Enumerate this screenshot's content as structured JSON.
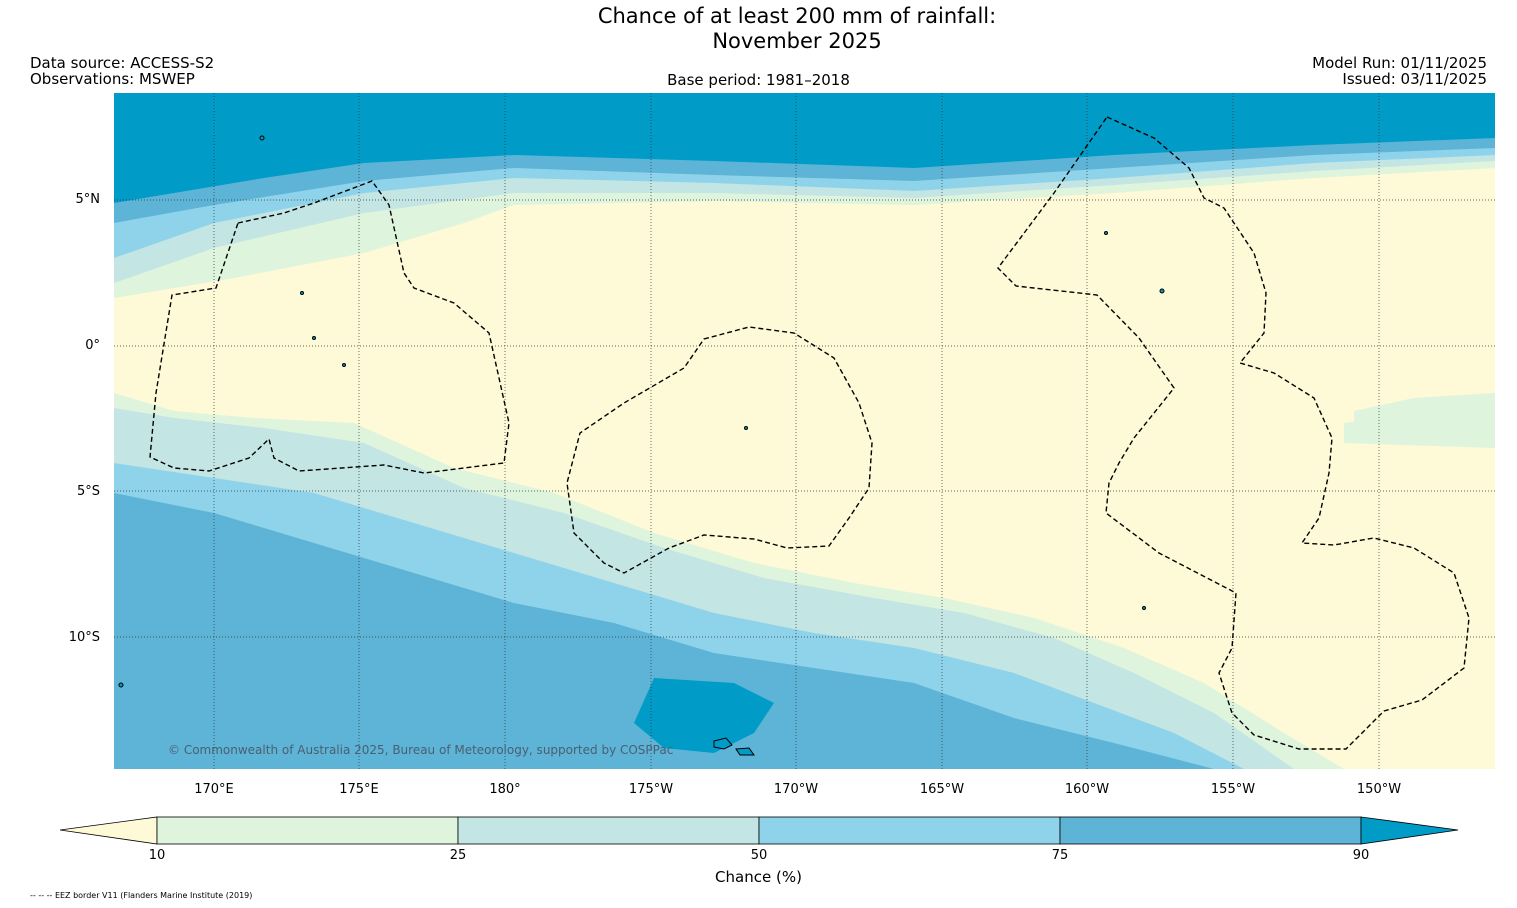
{
  "title": {
    "line1": "Chance of at least 200 mm of rainfall:",
    "line2": "November 2025"
  },
  "header": {
    "data_source": "Data source: ACCESS-S2",
    "observations": "Observations: MSWEP",
    "base_period": "Base period: 1981–2018",
    "model_run": "Model Run: 01/11/2025",
    "issued": "Issued: 03/11/2025"
  },
  "map": {
    "lat_labels": [
      "5°N",
      "0°",
      "5°S",
      "10°S"
    ],
    "lon_labels": [
      "170°E",
      "175°E",
      "180°",
      "175°W",
      "170°W",
      "165°W",
      "160°W",
      "155°W",
      "150°W"
    ],
    "copyright": "© Commonwealth of Australia 2025, Bureau of Meteorology, supported by COSPPac"
  },
  "colorbar": {
    "ticks": [
      "10",
      "25",
      "50",
      "75",
      "90"
    ],
    "label": "Chance (%)",
    "colors": {
      "below_10": "#fef9d6",
      "10_25": "#dff4dd",
      "25_50": "#c3e5e3",
      "50_75": "#8fd3ea",
      "75_90": "#5eb4d6",
      "above_90": "#009cc7"
    }
  },
  "footer": {
    "eez": "-- -- -- EEZ border V11 (Flanders Marine Institute (2019)"
  }
}
